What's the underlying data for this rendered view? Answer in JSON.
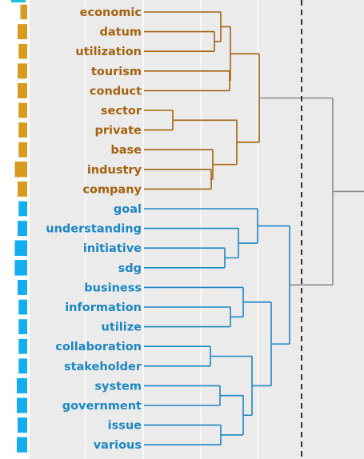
{
  "colors": {
    "background": "#ebebeb",
    "grid": "#ffffff",
    "cluster_a": "#a3620f",
    "cluster_b": "#1c86c4",
    "bar_a": "#d89a1f",
    "bar_b": "#12aef0",
    "root_link": "#8a8a8a",
    "cut_line": "#333333"
  },
  "dendrogram": {
    "orientation": "leaves-left",
    "cut_line": "dashed",
    "clusters": [
      {
        "leaves": [
          {
            "label": "economic",
            "bar": 0.34
          },
          {
            "label": "datum",
            "bar": 0.48
          },
          {
            "label": "utilization",
            "bar": 0.43
          },
          {
            "label": "tourism",
            "bar": 0.48
          },
          {
            "label": "conduct",
            "bar": 0.48
          },
          {
            "label": "sector",
            "bar": 0.43
          },
          {
            "label": "private",
            "bar": 0.43
          },
          {
            "label": "base",
            "bar": 0.43
          },
          {
            "label": "industry",
            "bar": 0.62
          },
          {
            "label": "company",
            "bar": 0.48
          }
        ]
      },
      {
        "leaves": [
          {
            "label": "goal",
            "bar": 0.43
          },
          {
            "label": "understanding",
            "bar": 0.48
          },
          {
            "label": "initiative",
            "bar": 0.62
          },
          {
            "label": "sdg",
            "bar": 0.62
          },
          {
            "label": "business",
            "bar": 0.48
          },
          {
            "label": "information",
            "bar": 0.43
          },
          {
            "label": "utilize",
            "bar": 0.43
          },
          {
            "label": "collaboration",
            "bar": 0.43
          },
          {
            "label": "stakeholder",
            "bar": 0.43
          },
          {
            "label": "system",
            "bar": 0.52
          },
          {
            "label": "government",
            "bar": 0.52
          },
          {
            "label": "issue",
            "bar": 0.48
          },
          {
            "label": "various",
            "bar": 0.52
          }
        ]
      }
    ]
  }
}
